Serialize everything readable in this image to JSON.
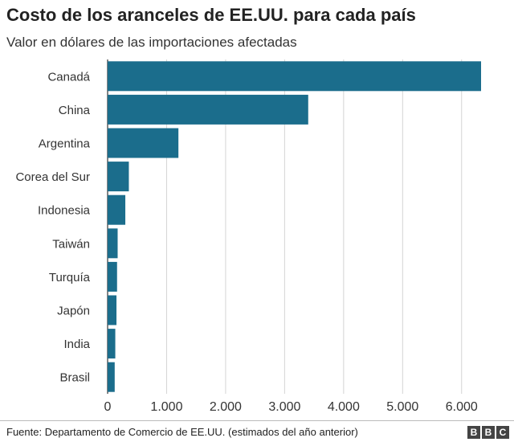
{
  "header": {
    "title": "Costo de los aranceles de EE.UU. para cada país",
    "subtitle": "Valor en dólares de las importaciones afectadas"
  },
  "footer": {
    "source": "Fuente: Departamento de Comercio de EE.UU. (estimados del año anterior)",
    "logo_letters": [
      "B",
      "B",
      "C"
    ]
  },
  "chart_data": {
    "type": "bar",
    "orientation": "horizontal",
    "title": "Costo de los aranceles de EE.UU. para cada país",
    "subtitle": "Valor en dólares de las importaciones afectadas",
    "categories": [
      "Canadá",
      "China",
      "Argentina",
      "Corea del Sur",
      "Indonesia",
      "Taiwán",
      "Turquía",
      "Japón",
      "India",
      "Brasil"
    ],
    "values": [
      6330,
      3400,
      1200,
      360,
      300,
      170,
      160,
      150,
      130,
      120
    ],
    "xlim": [
      0,
      6300
    ],
    "xticks": [
      0,
      1000,
      2000,
      3000,
      4000,
      5000,
      6000
    ],
    "xtick_labels": [
      "0",
      "1.000",
      "2.000",
      "3.000",
      "4.000",
      "5.000",
      "6.000"
    ],
    "grid": "vertical",
    "legend": "none",
    "colors": {
      "bar": "#1b6d8c",
      "grid": "#d4d4d4",
      "axis": "#333333"
    }
  }
}
